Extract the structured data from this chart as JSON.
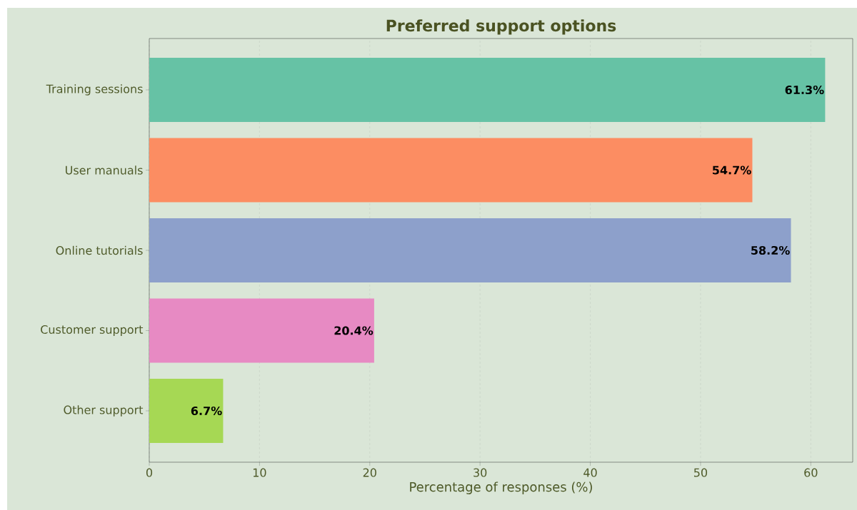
{
  "chart_data": {
    "type": "bar",
    "orientation": "horizontal",
    "title": "Preferred support options",
    "xlabel": "Percentage of responses (%)",
    "categories": [
      "Training sessions",
      "User manuals",
      "Online tutorials",
      "Customer support",
      "Other support"
    ],
    "values": [
      61.3,
      54.7,
      58.2,
      20.4,
      6.7
    ],
    "value_labels": [
      "61.3%",
      "54.7%",
      "58.2%",
      "20.4%",
      "6.7%"
    ],
    "colors": [
      "#66c2a5",
      "#fc8d62",
      "#8da0cb",
      "#e78ac3",
      "#a6d854"
    ],
    "xlim": [
      0,
      63.8
    ],
    "xticks": [
      0,
      10,
      20,
      30,
      40,
      50,
      60
    ],
    "grid": "x"
  }
}
